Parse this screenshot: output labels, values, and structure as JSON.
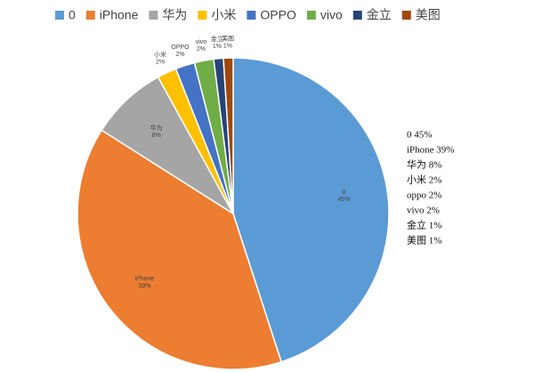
{
  "chart_data": {
    "type": "pie",
    "categories": [
      "0",
      "iPhone",
      "华为",
      "小米",
      "OPPO",
      "vivo",
      "金立",
      "美图"
    ],
    "values": [
      45,
      39,
      8,
      2,
      2,
      2,
      1,
      1
    ],
    "value_labels": [
      "45%",
      "39%",
      "8%",
      "2%",
      "2%",
      "2%",
      "1%",
      "1%"
    ],
    "colors": [
      "#5b9bd5",
      "#ed7d31",
      "#a5a5a5",
      "#ffc000",
      "#4472c4",
      "#70ad47",
      "#264478",
      "#9e480e"
    ],
    "legend": "top",
    "annotations": [
      "0 45%",
      "iPhone 39%",
      "华为 8%",
      "小米 2%",
      "oppo 2%",
      "vivo 2%",
      "金立 1%",
      "美图 1%"
    ]
  }
}
